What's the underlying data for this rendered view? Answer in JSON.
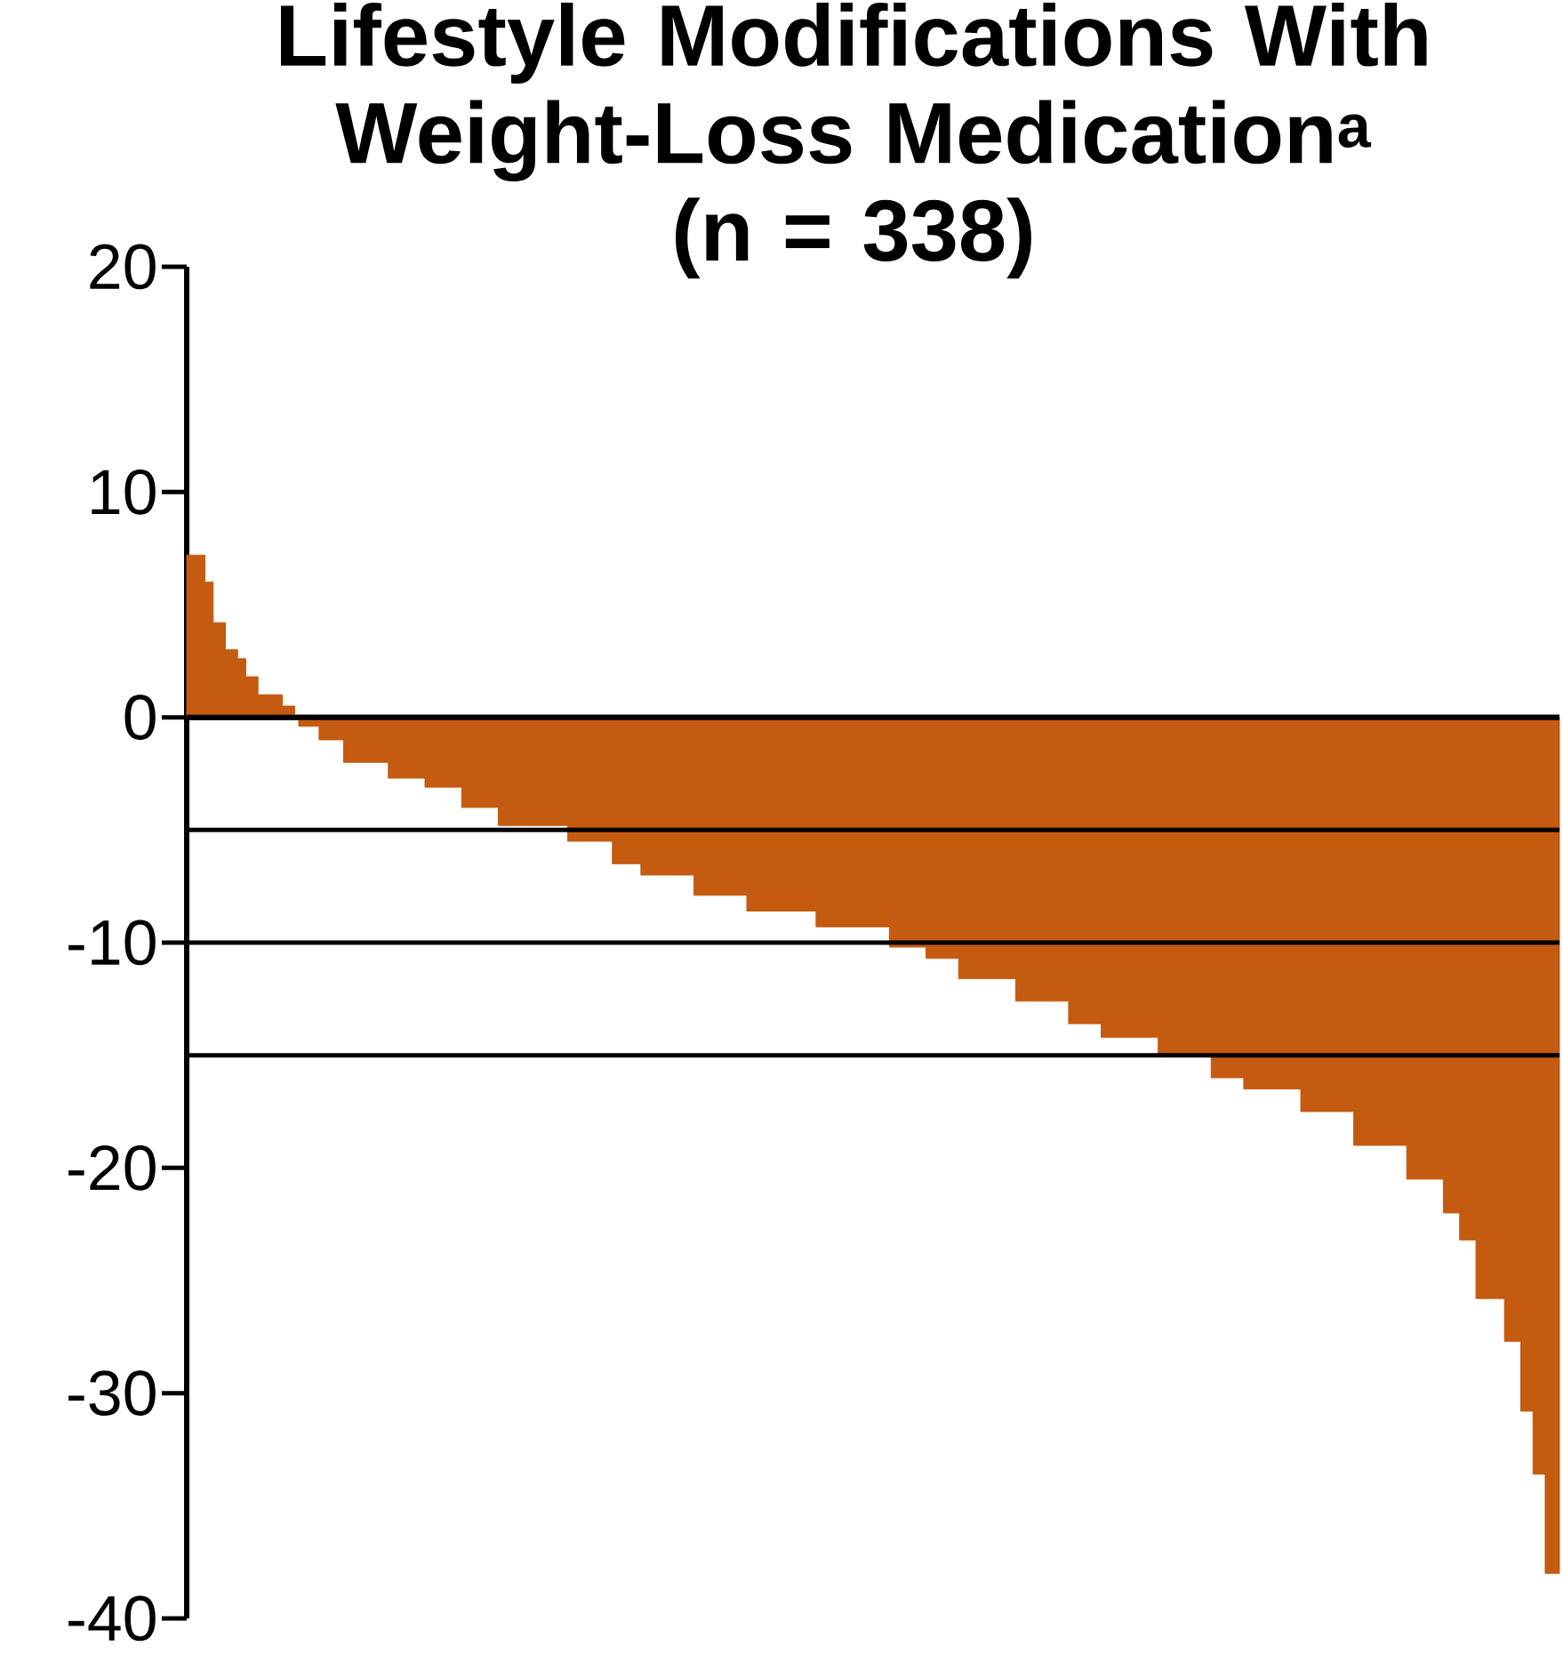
{
  "chart_data": {
    "type": "area",
    "title": "Lifestyle Modifications With Weight-Loss Medication$^{a}$",
    "subtitle": "(n = 338)",
    "categories": [
      null,
      null,
      null,
      null,
      null,
      null,
      null,
      null,
      null,
      null,
      null,
      null,
      null,
      null,
      null,
      null,
      null,
      null,
      null,
      null,
      null,
      null,
      null,
      null,
      null,
      null,
      null,
      null,
      null,
      null,
      null,
      null,
      null,
      null,
      null,
      null,
      null,
      null,
      null,
      null,
      null,
      null,
      null,
      null,
      null,
      null,
      null,
      null,
      null,
      null,
      null,
      null,
      null,
      null,
      null,
      null,
      null,
      null,
      null,
      null,
      null,
      null,
      null,
      null,
      null,
      null,
      null,
      null,
      null,
      null,
      null,
      null,
      null,
      null,
      null,
      null,
      null,
      null,
      null,
      null,
      null,
      null,
      null,
      null,
      null,
      null,
      null,
      null,
      null,
      null,
      null,
      null,
      null,
      null,
      null,
      null,
      null,
      null,
      null,
      null,
      null,
      null,
      null,
      null,
      null,
      null,
      null,
      null,
      null,
      null,
      null,
      null,
      null,
      null,
      null,
      null,
      null,
      null,
      null,
      null,
      null,
      null,
      null,
      null,
      null,
      null,
      null,
      null,
      null,
      null,
      null,
      null,
      null,
      null,
      null,
      null,
      null,
      null,
      null,
      null,
      null,
      null,
      null,
      null,
      null,
      null,
      null,
      null,
      null,
      null,
      null,
      null,
      null,
      null,
      null,
      null,
      null,
      null,
      null,
      null,
      null,
      null,
      null,
      null,
      null,
      null,
      null,
      null,
      null,
      null,
      null,
      null,
      null,
      null,
      null,
      null,
      null,
      null,
      null,
      null,
      null,
      null,
      null,
      null,
      null,
      null,
      null,
      null,
      null,
      null,
      null,
      null,
      null,
      null,
      null,
      null,
      null,
      null,
      null,
      null,
      null,
      null,
      null,
      null,
      null,
      null,
      null,
      null,
      null,
      null,
      null,
      null,
      null,
      null,
      null,
      null,
      null,
      null,
      null,
      null,
      null,
      null,
      null,
      null,
      null,
      null,
      null,
      null,
      null,
      null,
      null,
      null,
      null,
      null,
      null,
      null,
      null,
      null,
      null,
      null,
      null,
      null,
      null,
      null,
      null,
      null,
      null,
      null,
      null,
      null,
      null,
      null,
      null,
      null,
      null,
      null,
      null,
      null,
      null,
      null,
      null,
      null,
      null,
      null,
      null,
      null,
      null,
      null,
      null,
      null,
      null,
      null,
      null,
      null,
      null,
      null,
      null,
      null,
      null,
      null,
      null,
      null,
      null,
      null,
      null,
      null,
      null,
      null,
      null,
      null,
      null,
      null,
      null,
      null,
      null,
      null,
      null,
      null,
      null,
      null,
      null,
      null,
      null,
      null,
      null,
      null,
      null,
      null,
      null,
      null,
      null,
      null,
      null,
      null,
      null,
      null,
      null,
      null,
      null,
      null,
      null,
      null,
      null,
      null,
      null,
      null,
      null,
      null,
      null,
      null,
      null,
      null,
      null,
      null,
      null,
      null,
      null,
      null
    ],
    "series": [
      {
        "color": "#c55a11",
        "values": [
          7.2,
          7.2,
          7.2,
          7.2,
          7.2,
          6,
          6,
          4.2,
          4.2,
          4.2,
          3,
          3,
          3,
          2.6,
          2.6,
          1.8,
          1.8,
          1.8,
          1,
          1,
          1,
          1,
          1,
          1,
          0.5,
          0.5,
          0.5,
          0,
          -0.4,
          -0.4,
          -0.4,
          -0.4,
          -0.4,
          -1,
          -1,
          -1,
          -1,
          -1,
          -1,
          -2,
          -2,
          -2,
          -2,
          -2,
          -2,
          -2,
          -2,
          -2,
          -2,
          -2,
          -2.7,
          -2.7,
          -2.7,
          -2.7,
          -2.7,
          -2.7,
          -2.7,
          -2.7,
          -2.7,
          -3.1,
          -3.1,
          -3.1,
          -3.1,
          -3.1,
          -3.1,
          -3.1,
          -3.1,
          -3.1,
          -4,
          -4,
          -4,
          -4,
          -4,
          -4,
          -4,
          -4,
          -4,
          -4.8,
          -4.8,
          -4.8,
          -4.8,
          -4.8,
          -4.8,
          -4.8,
          -4.8,
          -4.8,
          -4.8,
          -4.8,
          -4.8,
          -4.8,
          -4.8,
          -4.8,
          -4.8,
          -4.8,
          -5.5,
          -5.5,
          -5.5,
          -5.5,
          -5.5,
          -5.5,
          -5.5,
          -5.5,
          -5.5,
          -5.5,
          -5.5,
          -6.5,
          -6.5,
          -6.5,
          -6.5,
          -6.5,
          -6.5,
          -6.5,
          -7,
          -7,
          -7,
          -7,
          -7,
          -7,
          -7,
          -7,
          -7,
          -7,
          -7,
          -7,
          -7,
          -7.9,
          -7.9,
          -7.9,
          -7.9,
          -7.9,
          -7.9,
          -7.9,
          -7.9,
          -7.9,
          -7.9,
          -7.9,
          -7.9,
          -7.9,
          -8.6,
          -8.6,
          -8.6,
          -8.6,
          -8.6,
          -8.6,
          -8.6,
          -8.6,
          -8.6,
          -8.6,
          -8.6,
          -8.6,
          -8.6,
          -8.6,
          -8.6,
          -8.6,
          -8.6,
          -9.3,
          -9.3,
          -9.3,
          -9.3,
          -9.3,
          -9.3,
          -9.3,
          -9.3,
          -9.3,
          -9.3,
          -9.3,
          -9.3,
          -9.3,
          -9.3,
          -9.3,
          -9.3,
          -9.3,
          -9.3,
          -10.2,
          -10.2,
          -10.2,
          -10.2,
          -10.2,
          -10.2,
          -10.2,
          -10.2,
          -10.2,
          -10.7,
          -10.7,
          -10.7,
          -10.7,
          -10.7,
          -10.7,
          -10.7,
          -10.7,
          -11.6,
          -11.6,
          -11.6,
          -11.6,
          -11.6,
          -11.6,
          -11.6,
          -11.6,
          -11.6,
          -11.6,
          -11.6,
          -11.6,
          -11.6,
          -11.6,
          -12.6,
          -12.6,
          -12.6,
          -12.6,
          -12.6,
          -12.6,
          -12.6,
          -12.6,
          -12.6,
          -12.6,
          -12.6,
          -12.6,
          -12.6,
          -13.6,
          -13.6,
          -13.6,
          -13.6,
          -13.6,
          -13.6,
          -13.6,
          -13.6,
          -14.2,
          -14.2,
          -14.2,
          -14.2,
          -14.2,
          -14.2,
          -14.2,
          -14.2,
          -14.2,
          -14.2,
          -14.2,
          -14.2,
          -14.2,
          -14.2,
          -15,
          -15,
          -15,
          -15,
          -15,
          -15,
          -15,
          -15,
          -15,
          -15,
          -15,
          -15,
          -15,
          -16,
          -16,
          -16,
          -16,
          -16,
          -16,
          -16,
          -16,
          -16.5,
          -16.5,
          -16.5,
          -16.5,
          -16.5,
          -16.5,
          -16.5,
          -16.5,
          -16.5,
          -16.5,
          -16.5,
          -16.5,
          -16.5,
          -16.5,
          -17.5,
          -17.5,
          -17.5,
          -17.5,
          -17.5,
          -17.5,
          -17.5,
          -17.5,
          -17.5,
          -17.5,
          -17.5,
          -17.5,
          -17.5,
          -19,
          -19,
          -19,
          -19,
          -19,
          -19,
          -19,
          -19,
          -19,
          -19,
          -19,
          -19,
          -19,
          -20.5,
          -20.5,
          -20.5,
          -20.5,
          -20.5,
          -20.5,
          -20.5,
          -20.5,
          -20.5,
          -22,
          -22,
          -22,
          -22,
          -23.2,
          -23.2,
          -23.2,
          -23.2,
          -25.8,
          -25.8,
          -25.8,
          -25.8,
          -25.8,
          -25.8,
          -25.8,
          -27.7,
          -27.7,
          -27.7,
          -27.7,
          -30.8,
          -30.8,
          -30.8,
          -33.6,
          -33.6,
          -33.6,
          -38,
          -38,
          -38,
          -38
        ]
      }
    ],
    "ylim": [
      -40,
      20
    ],
    "yticks": [
      -40,
      -30,
      -20,
      -10,
      0,
      10,
      20
    ],
    "tick_labels": "y",
    "ref_lines": [
      {
        "axis": "y",
        "value": -5
      },
      {
        "axis": "y",
        "value": -10
      },
      {
        "axis": "y",
        "value": -15
      }
    ]
  }
}
